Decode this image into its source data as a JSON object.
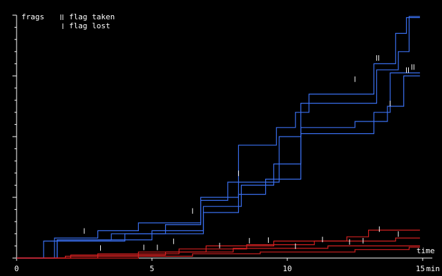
{
  "chart_data": {
    "type": "step-line",
    "ylabel": "frags",
    "xlabel": "time",
    "xunit": "min",
    "legend": [
      {
        "label": "flag taken",
        "kind": "taken"
      },
      {
        "label": "flag lost",
        "kind": "lost"
      }
    ],
    "xlim": [
      0,
      15
    ],
    "xticks": [
      0,
      5,
      10,
      15
    ],
    "ylim": [
      0,
      40
    ],
    "yticks": [
      0,
      2,
      4,
      6,
      8,
      10,
      12,
      14,
      16,
      18,
      20,
      22,
      24,
      26,
      28,
      30,
      32,
      34,
      36,
      38,
      40
    ],
    "series": [
      {
        "color": "#3a6ff0",
        "x": [
          0,
          1.4,
          1.4,
          3,
          3,
          4.5,
          4.5,
          6.8,
          6.8,
          8.2,
          8.2,
          9.6,
          9.6,
          10.3,
          10.3,
          10.8,
          10.8,
          13.2,
          13.2,
          14,
          14,
          14.4,
          14.4,
          14.9
        ],
        "values": [
          0,
          0,
          3.3,
          3.3,
          4.5,
          4.5,
          5.8,
          5.8,
          10,
          10,
          18.6,
          18.6,
          21.5,
          21.5,
          24,
          24,
          27,
          27,
          32,
          32,
          37,
          37,
          39.6,
          39.6
        ]
      },
      {
        "color": "#3a6ff0",
        "x": [
          0,
          1.5,
          1.5,
          3.5,
          3.5,
          5.5,
          5.5,
          6.8,
          6.8,
          7.8,
          7.8,
          9.7,
          9.7,
          10.5,
          10.5,
          13.3,
          13.3,
          14.1,
          14.1,
          14.5,
          14.5,
          14.9
        ],
        "values": [
          0,
          0,
          3,
          3,
          4,
          4,
          5.5,
          5.5,
          9.5,
          9.5,
          12.5,
          12.5,
          20,
          20,
          25.5,
          25.5,
          31,
          31,
          34,
          34,
          39.8,
          39.8
        ]
      },
      {
        "color": "#3a6ff0",
        "x": [
          0,
          1,
          1,
          4,
          4,
          6.9,
          6.9,
          8.3,
          8.3,
          9.5,
          9.5,
          10.5,
          10.5,
          12.5,
          12.5,
          13.7,
          13.7,
          14.3,
          14.3,
          14.9
        ],
        "values": [
          0,
          0,
          2.8,
          2.8,
          4,
          4,
          8.5,
          8.5,
          12,
          12,
          15.5,
          15.5,
          21.5,
          21.5,
          22.5,
          22.5,
          25,
          25,
          30,
          30
        ]
      },
      {
        "color": "#3a6ff0",
        "x": [
          0,
          1.5,
          1.5,
          5,
          5,
          6.9,
          6.9,
          8.2,
          8.2,
          9.2,
          9.2,
          10.5,
          10.5,
          13.2,
          13.2,
          13.8,
          13.8,
          14.9
        ],
        "values": [
          0,
          0,
          3,
          3,
          4.5,
          4.5,
          7.5,
          7.5,
          10.5,
          10.5,
          13,
          13,
          20.5,
          20.5,
          24,
          24,
          30.5,
          30.5
        ]
      },
      {
        "color": "#d42020",
        "x": [
          0,
          4.5,
          4.5,
          7,
          7,
          9.5,
          9.5,
          12.2,
          12.2,
          13,
          13,
          14.9
        ],
        "values": [
          0,
          0,
          1,
          1,
          2,
          2,
          2.8,
          2.8,
          3.5,
          3.5,
          4.6,
          4.6
        ]
      },
      {
        "color": "#d42020",
        "x": [
          0,
          3,
          3,
          6,
          6,
          8.5,
          8.5,
          11,
          11,
          14,
          14,
          14.9
        ],
        "values": [
          0,
          0,
          0.7,
          0.7,
          1.5,
          1.5,
          2.2,
          2.2,
          2.8,
          2.8,
          3.3,
          3.3
        ]
      },
      {
        "color": "#d42020",
        "x": [
          0,
          2,
          2,
          5.5,
          5.5,
          8,
          8,
          11.5,
          11.5,
          14.9
        ],
        "values": [
          0,
          0,
          0.5,
          0.5,
          1,
          1,
          1.6,
          1.6,
          2,
          2
        ]
      },
      {
        "color": "#d42020",
        "x": [
          0,
          1.8,
          1.8,
          6.5,
          6.5,
          9,
          9,
          12.5,
          12.5,
          14.5,
          14.5,
          14.9
        ],
        "values": [
          0,
          0,
          0.3,
          0.3,
          0.7,
          0.7,
          1,
          1,
          1.4,
          1.4,
          1.8,
          1.8
        ]
      }
    ],
    "flags_taken": {
      "x": [
        13.3,
        14.4,
        14.6
      ],
      "values": [
        32.5,
        30.5,
        31
      ]
    },
    "flags_lost": {
      "x": [
        2.5,
        3.1,
        4.7,
        5.8,
        6.5,
        7.5,
        8.2,
        8.6,
        9.3,
        10.3,
        11.3,
        12.3,
        12.8,
        13.4,
        14.1,
        5.2,
        12.5,
        13.8
      ],
      "values": [
        4,
        1.2,
        1.3,
        2.3,
        7.3,
        1.6,
        13.5,
        2.4,
        2.5,
        1.5,
        2.6,
        2.2,
        2.4,
        4.3,
        3.5,
        1.3,
        29,
        25
      ]
    }
  }
}
